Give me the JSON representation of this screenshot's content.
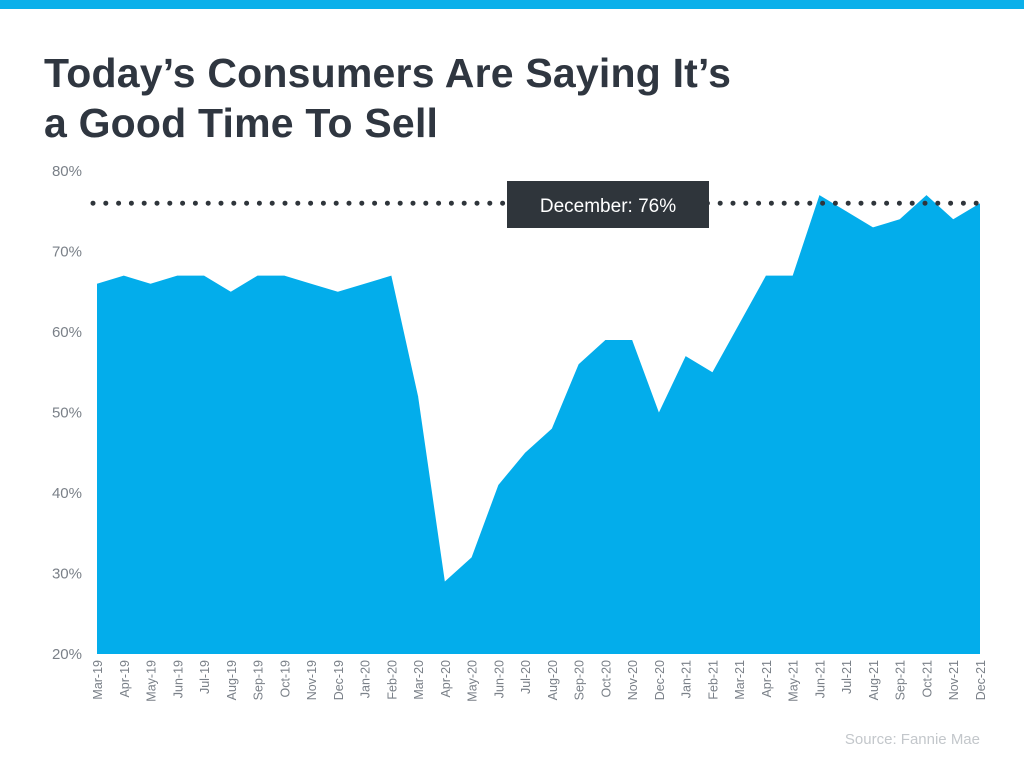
{
  "title_line1": "Today’s Consumers Are Saying It’s",
  "title_line2": "a Good Time To Sell",
  "source": "Source: Fannie Mae",
  "colors": {
    "accent": "#0bb0ea",
    "area": "#03adeb",
    "dark": "#2f353b",
    "axis_text": "#7a8088"
  },
  "chart_data": {
    "type": "area",
    "title": "Today’s Consumers Are Saying It’s a Good Time To Sell",
    "xlabel": "",
    "ylabel": "",
    "ylim": [
      20,
      80
    ],
    "yticks": [
      "20%",
      "30%",
      "40%",
      "50%",
      "60%",
      "70%",
      "80%"
    ],
    "grid": false,
    "categories": [
      "Mar-19",
      "Apr-19",
      "May-19",
      "Jun-19",
      "Jul-19",
      "Aug-19",
      "Sep-19",
      "Oct-19",
      "Nov-19",
      "Dec-19",
      "Jan-20",
      "Feb-20",
      "Mar-20",
      "Apr-20",
      "May-20",
      "Jun-20",
      "Jul-20",
      "Aug-20",
      "Sep-20",
      "Oct-20",
      "Nov-20",
      "Dec-20",
      "Jan-21",
      "Feb-21",
      "Mar-21",
      "Apr-21",
      "May-21",
      "Jun-21",
      "Jul-21",
      "Aug-21",
      "Sep-21",
      "Oct-21",
      "Nov-21",
      "Dec-21"
    ],
    "values": [
      66,
      67,
      66,
      67,
      67,
      65,
      67,
      67,
      66,
      65,
      66,
      67,
      52,
      29,
      32,
      41,
      45,
      48,
      56,
      59,
      59,
      50,
      57,
      55,
      61,
      67,
      67,
      77,
      75,
      73,
      74,
      77,
      74,
      76
    ],
    "reference_line": {
      "value": 76,
      "style": "dotted"
    },
    "annotation": "December: 76%"
  }
}
